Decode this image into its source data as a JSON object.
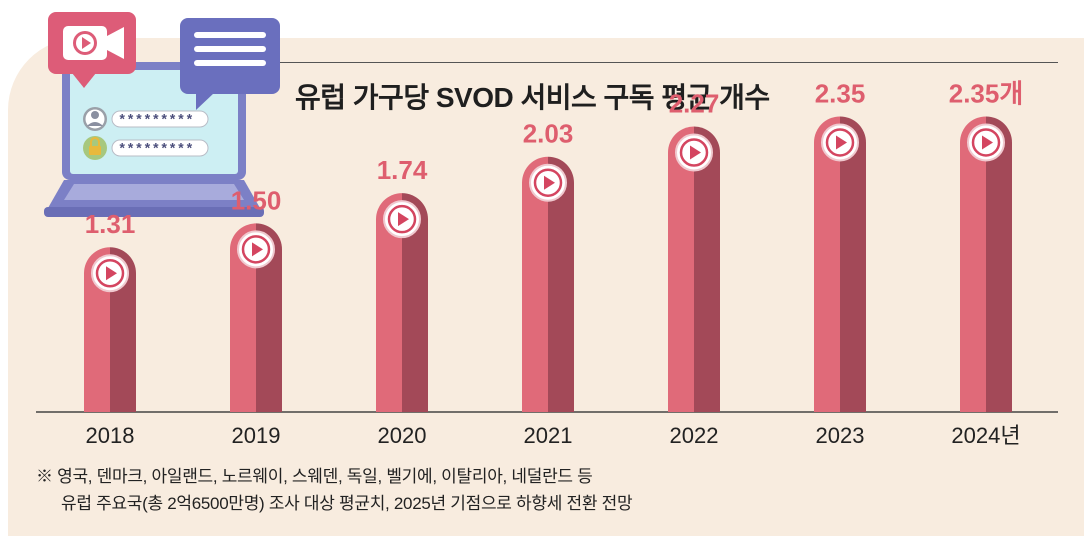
{
  "title": "유럽 가구당 SVOD 서비스 구독 평균 개수",
  "chart_data": {
    "type": "bar",
    "title": "유럽 가구당 SVOD 서비스 구독 평균 개수",
    "categories": [
      "2018",
      "2019",
      "2020",
      "2021",
      "2022",
      "2023",
      "2024년"
    ],
    "values": [
      1.31,
      1.5,
      1.74,
      2.03,
      2.27,
      2.35,
      2.35
    ],
    "value_labels": [
      "1.31",
      "1.50",
      "1.74",
      "2.03",
      "2.27",
      "2.35",
      "2.35개"
    ],
    "xlabel": "",
    "ylabel": "",
    "ylim": [
      0,
      2.6
    ],
    "grid": false,
    "legend": "none",
    "colors": {
      "bar_light": "#e06a79",
      "bar_dark": "#a34958",
      "value_label": "#de5e6e",
      "play_icon": "#d44560"
    }
  },
  "notes": [
    "※ 영국, 덴마크, 아일랜드, 노르웨이, 스웨덴, 독일, 벨기에, 이탈리아, 네덜란드 등",
    "유럽 주요국(총 2억6500만명) 조사 대상 평균치, 2025년 기점으로 하향세 전환 전망"
  ],
  "illustration": {
    "icons": [
      "laptop-icon",
      "video-camera-icon",
      "chat-bubble-icon",
      "user-icon",
      "lock-icon"
    ],
    "password_mask": "*********"
  },
  "colors": {
    "background": "#f8ecdf",
    "title": "#1f1f1f",
    "laptop_body": "#8a8fd0",
    "bubble_pink": "#dd5c78",
    "bubble_purple": "#7075c0"
  }
}
